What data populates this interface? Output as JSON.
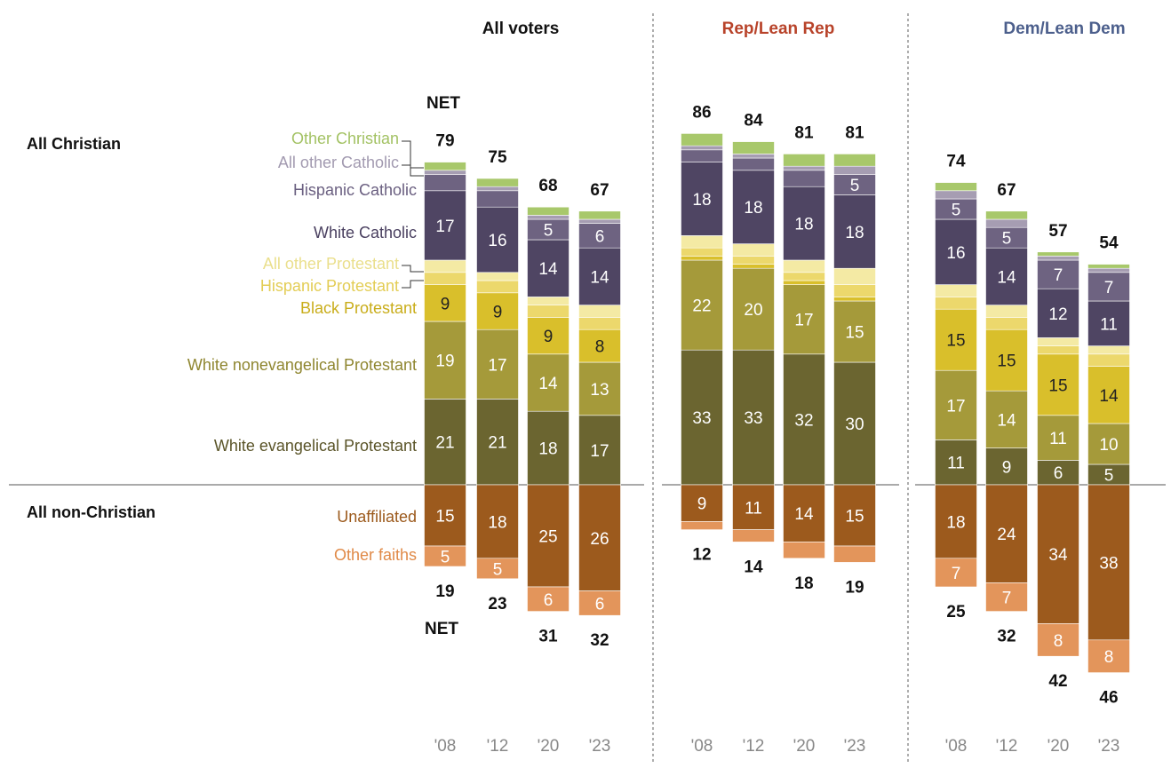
{
  "chart_data": {
    "type": "bar",
    "stacked": true,
    "panels": [
      {
        "title": "All voters",
        "title_color": "#111111",
        "years": [
          "'08",
          "'12",
          "'20",
          "'23"
        ],
        "christian": [
          [
            21,
            19,
            9,
            3,
            3,
            17,
            4,
            1,
            2
          ],
          [
            21,
            17,
            9,
            3,
            2,
            16,
            4,
            1,
            2
          ],
          [
            18,
            14,
            9,
            3,
            2,
            14,
            5,
            1,
            2
          ],
          [
            17,
            13,
            8,
            3,
            3,
            14,
            6,
            1,
            2
          ]
        ],
        "non_christian": [
          [
            15,
            5
          ],
          [
            18,
            5
          ],
          [
            25,
            6
          ],
          [
            26,
            6
          ]
        ],
        "net_christian": [
          79,
          75,
          68,
          67
        ],
        "net_non_christian": [
          19,
          23,
          31,
          32
        ]
      },
      {
        "title": "Rep/Lean Rep",
        "title_color": "#b8432a",
        "years": [
          "'08",
          "'12",
          "'20",
          "'23"
        ],
        "christian": [
          [
            33,
            22,
            1,
            2,
            3,
            18,
            3,
            1,
            3
          ],
          [
            33,
            20,
            1,
            2,
            3,
            18,
            3,
            1,
            3
          ],
          [
            32,
            17,
            1,
            2,
            3,
            18,
            4,
            1,
            3
          ],
          [
            30,
            15,
            1,
            3,
            4,
            18,
            5,
            2,
            3
          ]
        ],
        "non_christian": [
          [
            9,
            2
          ],
          [
            11,
            3
          ],
          [
            14,
            4
          ],
          [
            15,
            4
          ]
        ],
        "net_christian": [
          86,
          84,
          81,
          81
        ],
        "net_non_christian": [
          12,
          14,
          18,
          19
        ]
      },
      {
        "title": "Dem/Lean Dem",
        "title_color": "#4c5f8c",
        "years": [
          "'08",
          "'12",
          "'20",
          "'23"
        ],
        "christian": [
          [
            11,
            17,
            15,
            3,
            3,
            16,
            5,
            2,
            2
          ],
          [
            9,
            14,
            15,
            3,
            3,
            14,
            5,
            2,
            2
          ],
          [
            6,
            11,
            15,
            2,
            2,
            12,
            7,
            1,
            1
          ],
          [
            5,
            10,
            14,
            3,
            2,
            11,
            7,
            1,
            1
          ]
        ],
        "non_christian": [
          [
            18,
            7
          ],
          [
            24,
            7
          ],
          [
            34,
            8
          ],
          [
            38,
            8
          ]
        ],
        "net_christian": [
          74,
          67,
          57,
          54
        ],
        "net_non_christian": [
          25,
          32,
          42,
          46
        ]
      }
    ],
    "christian_categories": [
      {
        "name": "White evangelical Protestant",
        "color": "#6b6530"
      },
      {
        "name": "White nonevangelical Protestant",
        "color": "#a59a3a"
      },
      {
        "name": "Black Protestant",
        "color": "#d9bf2b"
      },
      {
        "name": "Hispanic Protestant",
        "color": "#ecd86c"
      },
      {
        "name": "All other Protestant",
        "color": "#f4eaa4"
      },
      {
        "name": "White Catholic",
        "color": "#4f4563"
      },
      {
        "name": "Hispanic Catholic",
        "color": "#6e6381"
      },
      {
        "name": "All other Catholic",
        "color": "#a69db2"
      },
      {
        "name": "Other Christian",
        "color": "#a8c86b"
      }
    ],
    "non_christian_categories": [
      {
        "name": "Unaffiliated",
        "color": "#9c5a1d"
      },
      {
        "name": "Other faiths",
        "color": "#e3955b"
      }
    ],
    "group_labels": {
      "christian": "All Christian",
      "non_christian": "All non-Christian"
    },
    "net_label": "NET"
  }
}
